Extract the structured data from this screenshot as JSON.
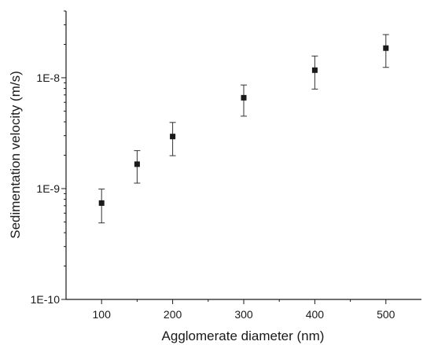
{
  "chart_data": {
    "type": "scatter",
    "title": "",
    "xlabel": "Agglomerate diameter (nm)",
    "ylabel": "Sedimentation velocity (m/s)",
    "xlim": [
      50,
      550
    ],
    "ylim": [
      1e-10,
      4e-08
    ],
    "yscale": "log",
    "xticks": [
      100,
      200,
      300,
      400,
      500
    ],
    "xtick_labels": [
      "100",
      "200",
      "300",
      "400",
      "500"
    ],
    "yticks": [
      1e-10,
      1e-09,
      1e-08
    ],
    "ytick_labels": [
      "1E-10",
      "1E-9",
      "1E-8"
    ],
    "grid": false,
    "legend": "none",
    "marker": "square",
    "color": "#1a1a1a",
    "points": [
      {
        "x": 100,
        "y": 7.4e-10,
        "y_low": 4.9e-10,
        "y_high": 9.9e-10
      },
      {
        "x": 150,
        "y": 1.66e-09,
        "y_low": 1.12e-09,
        "y_high": 2.2e-09
      },
      {
        "x": 200,
        "y": 2.95e-09,
        "y_low": 1.98e-09,
        "y_high": 3.95e-09
      },
      {
        "x": 300,
        "y": 6.6e-09,
        "y_low": 4.5e-09,
        "y_high": 8.6e-09
      },
      {
        "x": 400,
        "y": 1.17e-08,
        "y_low": 7.9e-09,
        "y_high": 1.57e-08
      },
      {
        "x": 500,
        "y": 1.85e-08,
        "y_low": 1.24e-08,
        "y_high": 2.45e-08
      }
    ]
  }
}
